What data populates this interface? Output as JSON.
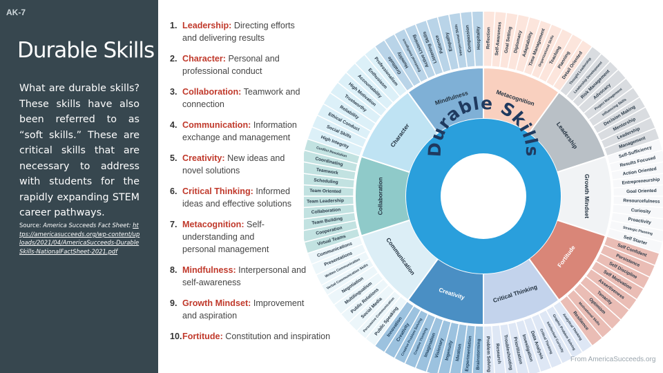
{
  "slide": {
    "code": "AK-7",
    "title": "Durable Skills",
    "body": "What are durable skills? These skills have also been referred to as “soft skills.” These are critical skills that are necessary to address with students for the rapidly expanding STEM career pathways.",
    "source_label": "Source: ",
    "source_name": "America Succeeds Fact Sheet: ",
    "source_url": "https://americasucceeds.org/wp-content/uploads/2021/04/AmericaSucceeds-DurableSkills-NationalFactSheet-2021.pdf"
  },
  "skills": [
    {
      "num": "1.",
      "name": "Leadership:",
      "desc": " Directing efforts and delivering results"
    },
    {
      "num": "2.",
      "name": "Character:",
      "desc": " Personal and professional conduct"
    },
    {
      "num": "3.",
      "name": "Collaboration:",
      "desc": " Teamwork and connection"
    },
    {
      "num": "4.",
      "name": "Communication:",
      "desc": " Information exchange and management"
    },
    {
      "num": "5.",
      "name": "Creativity:",
      "desc": " New ideas and novel solutions"
    },
    {
      "num": "6.",
      "name": "Critical Thinking:",
      "desc": " Informed ideas and effective solutions"
    },
    {
      "num": "7.",
      "name": "Metacognition:",
      "desc": " Self-understanding and personal management"
    },
    {
      "num": "8.",
      "name": "Mindfulness:",
      "desc": " Interpersonal and self-awareness"
    },
    {
      "num": "9.",
      "name": "Growth Mindset:",
      "desc": " Improvement and aspiration"
    },
    {
      "num": "10.",
      "name": "Fortitude:",
      "desc": " Constitution and inspiration"
    }
  ],
  "wheel": {
    "center_title": "Durable Skills",
    "categories": [
      {
        "name": "Mindfulness",
        "color": "#7fb0d6",
        "subs": [
          "Gratitude",
          "Humility",
          "Emotional Intelligence",
          "Active Listening",
          "Listening Skills",
          "Patience",
          "Empathy",
          "Interpersonal Skills",
          "Compassion",
          "Hospitality"
        ]
      },
      {
        "name": "Metacognition",
        "color": "#f9d0bf",
        "subs": [
          "Reflection",
          "Self-Awareness",
          "Goal Setting",
          "Diplomacy",
          "Adaptability",
          "Time Management",
          "Organizational Skills",
          "Teaching",
          "Planning",
          "Detail Oriented"
        ]
      },
      {
        "name": "Leadership",
        "color": "#b9c0c6",
        "subs": [
          "Thought Leadership",
          "Leadership Development",
          "Risk Management",
          "Advocacy",
          "Project Management",
          "Influencing Skills",
          "Decision Making",
          "Mentorship",
          "Leadership",
          "Management"
        ]
      },
      {
        "name": "Growth Mindset",
        "color": "#f1f3f5",
        "subs": [
          "Self-Sufficiency",
          "Results Focused",
          "Action Oriented",
          "Entrepreneurship",
          "Goal Oriented",
          "Resourcefulness",
          "Curiosity",
          "Proactivity",
          "Strategic Planning",
          "Self Starter"
        ]
      },
      {
        "name": "Fortitude",
        "color": "#d98678",
        "subs": [
          "Self Confident",
          "Persistence",
          "Self Discipline",
          "Self Motivation",
          "Assertiveness",
          "Tenacity",
          "Optimism",
          "Motivational Skills",
          "Resilience"
        ]
      },
      {
        "name": "Critical Thinking",
        "color": "#c3d3ec",
        "subs": [
          "Analytical Thinking",
          "Graphic Problem Solving",
          "Intellectual Curiosity",
          "Critical Thinking",
          "Data Analysis",
          "Investigation",
          "Prioritization",
          "Troubleshooting",
          "Research",
          "Problem Solving"
        ]
      },
      {
        "name": "Creativity",
        "color": "#4a8fc4",
        "subs": [
          "Brainstorming",
          "Experimentation",
          "Ideation",
          "Ingenuity",
          "Visionary",
          "Imagination",
          "Creative Thinking",
          "Creative Problem Solving",
          "Creativity",
          "Innovation"
        ]
      },
      {
        "name": "Communication",
        "color": "#dceef6",
        "subs": [
          "Public Speaking",
          "Persuasive Communication",
          "Social Media",
          "Public Relations",
          "Multilingualism",
          "Negotiation",
          "Verbal Communication Skills",
          "Written Communication",
          "Presentations",
          "Communications"
        ]
      },
      {
        "name": "Collaboration",
        "color": "#8fcac9",
        "subs": [
          "Virtual Teams",
          "Cooperation",
          "Team Building",
          "Collaboration",
          "Team Leadership",
          "Team Oriented",
          "Scheduling",
          "Teamwork",
          "Coordinating",
          "Conflict Resolution"
        ]
      },
      {
        "name": "Character",
        "color": "#bfe3f3",
        "subs": [
          "High Integrity",
          "Social Skills",
          "Ethical Conduct",
          "Reliability",
          "Trustworthy",
          "High Motivation",
          "Accountability",
          "Enthusiasm",
          "Professionalism"
        ]
      }
    ]
  },
  "credit": "From AmericaSucceeds.org"
}
